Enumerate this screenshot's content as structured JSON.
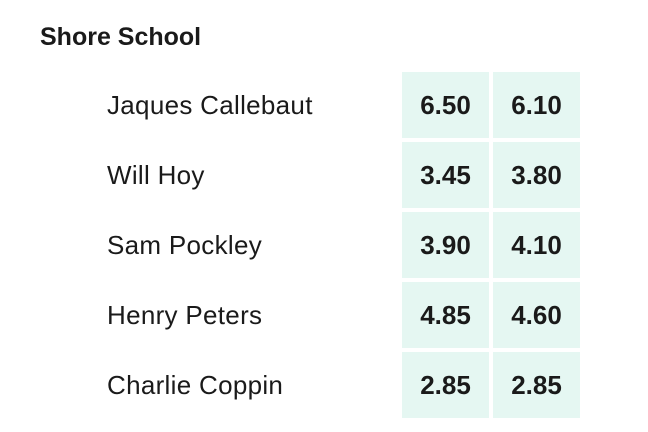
{
  "header": {
    "title": "Shore School"
  },
  "table": {
    "rows": [
      [
        "Jaques Callebaut",
        "6.50",
        "6.10"
      ],
      [
        "Will Hoy",
        "3.45",
        "3.80"
      ],
      [
        "Sam Pockley",
        "3.90",
        "4.10"
      ],
      [
        "Henry Peters",
        "4.85",
        "4.60"
      ],
      [
        "Charlie Coppin",
        "2.85",
        "2.85"
      ]
    ]
  }
}
